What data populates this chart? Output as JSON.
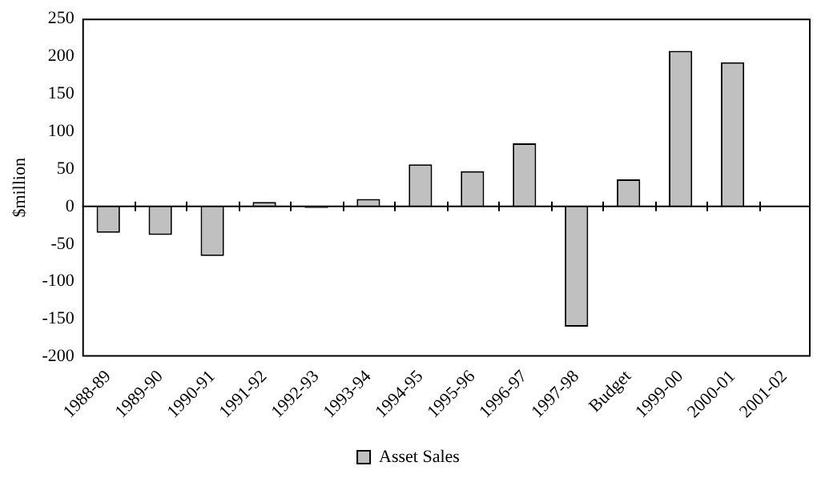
{
  "chart_data": {
    "type": "bar",
    "ylabel": "$million",
    "categories": [
      "1988-89",
      "1989-90",
      "1990-91",
      "1991-92",
      "1992-93",
      "1993-94",
      "1994-95",
      "1995-96",
      "1996-97",
      "1997-98",
      "Budget",
      "1999-00",
      "2000-01",
      "2001-02"
    ],
    "series": [
      {
        "name": "Asset Sales",
        "color": "#c0c0c0",
        "values": [
          -35,
          -38,
          -66,
          6,
          -2,
          10,
          56,
          47,
          84,
          -160,
          36,
          207,
          192,
          null
        ]
      }
    ],
    "ylim": [
      -200,
      250
    ],
    "yticks": [
      -200,
      -150,
      -100,
      -50,
      0,
      50,
      100,
      150,
      200,
      250
    ],
    "legend": "bottom"
  }
}
